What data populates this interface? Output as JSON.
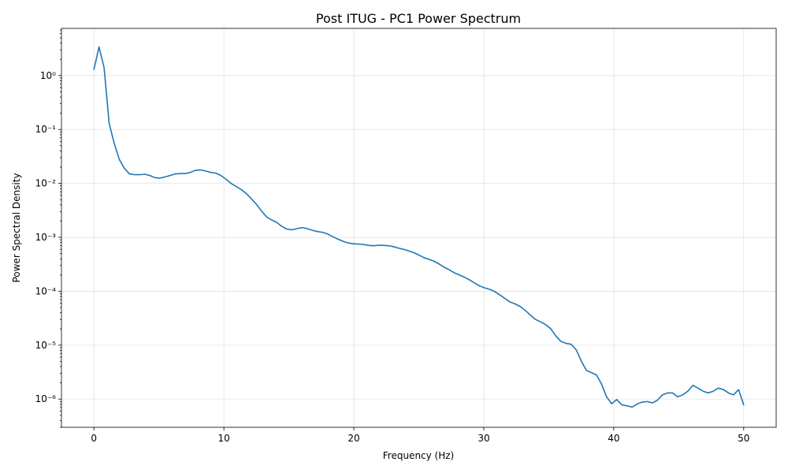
{
  "chart_data": {
    "type": "line",
    "title": "Post ITUG - PC1 Power Spectrum",
    "xlabel": "Frequency (Hz)",
    "ylabel": "Power Spectral Density",
    "xlim": [
      -2.5,
      52.5
    ],
    "ylim": [
      3e-07,
      7.5
    ],
    "yscale": "log",
    "grid": true,
    "xticks": [
      0,
      10,
      20,
      30,
      40,
      50
    ],
    "xtick_labels": [
      "0",
      "10",
      "20",
      "30",
      "40",
      "50"
    ],
    "yticks": [
      -6,
      -5,
      -4,
      -3,
      -2,
      -1,
      0
    ],
    "ytick_labels": [
      "10⁻⁶",
      "10⁻⁵",
      "10⁻⁴",
      "10⁻³",
      "10⁻²",
      "10⁻¹",
      "10⁰"
    ],
    "series": [
      {
        "color": "#1f77b4",
        "x": [
          0,
          0.39,
          0.78,
          1.17,
          1.56,
          1.95,
          2.34,
          2.73,
          3.13,
          3.52,
          3.91,
          4.3,
          4.69,
          5.08,
          5.47,
          5.86,
          6.25,
          6.64,
          7.03,
          7.42,
          7.81,
          8.2,
          8.59,
          8.98,
          9.38,
          9.77,
          10.16,
          10.55,
          10.94,
          11.33,
          11.72,
          12.11,
          12.5,
          12.89,
          13.28,
          13.67,
          14.06,
          14.45,
          14.84,
          15.23,
          15.63,
          16.02,
          16.41,
          16.8,
          17.19,
          17.58,
          17.97,
          18.36,
          18.75,
          19.14,
          19.53,
          19.92,
          20.31,
          20.7,
          21.09,
          21.48,
          21.88,
          22.27,
          22.66,
          23.05,
          23.44,
          23.83,
          24.22,
          24.61,
          25.0,
          25.39,
          25.78,
          26.17,
          26.56,
          26.95,
          27.34,
          27.73,
          28.13,
          28.52,
          28.91,
          29.3,
          29.69,
          30.08,
          30.47,
          30.86,
          31.25,
          31.64,
          32.03,
          32.42,
          32.81,
          33.2,
          33.59,
          33.98,
          34.38,
          34.77,
          35.16,
          35.55,
          35.94,
          36.33,
          36.72,
          37.11,
          37.5,
          37.89,
          38.28,
          38.67,
          39.06,
          39.45,
          39.84,
          40.23,
          40.63,
          41.02,
          41.41,
          41.8,
          42.19,
          42.58,
          42.97,
          43.36,
          43.75,
          44.14,
          44.53,
          44.92,
          45.31,
          45.7,
          46.09,
          46.48,
          46.88,
          47.27,
          47.66,
          48.05,
          48.44,
          48.83,
          49.22,
          49.61,
          50.0
        ],
        "y": [
          1.3,
          3.4,
          1.4,
          0.13,
          0.055,
          0.028,
          0.019,
          0.015,
          0.0145,
          0.0145,
          0.0148,
          0.014,
          0.0128,
          0.0125,
          0.0132,
          0.014,
          0.015,
          0.0152,
          0.0152,
          0.016,
          0.0175,
          0.0178,
          0.017,
          0.016,
          0.0155,
          0.014,
          0.012,
          0.01,
          0.0088,
          0.0077,
          0.0065,
          0.0052,
          0.0041,
          0.0031,
          0.0024,
          0.0021,
          0.0019,
          0.0016,
          0.00142,
          0.00138,
          0.00145,
          0.00152,
          0.00145,
          0.00135,
          0.00128,
          0.00124,
          0.00116,
          0.00103,
          0.00093,
          0.00085,
          0.00079,
          0.00076,
          0.00075,
          0.00074,
          0.00071,
          0.0007,
          0.00071,
          0.00071,
          0.0007,
          0.00067,
          0.00063,
          0.0006,
          0.00056,
          0.00052,
          0.00047,
          0.00042,
          0.00039,
          0.00036,
          0.00032,
          0.00028,
          0.00025,
          0.00022,
          0.0002,
          0.000182,
          0.000162,
          0.000142,
          0.000125,
          0.000115,
          0.000108,
          9.8e-05,
          8.5e-05,
          7.3e-05,
          6.3e-05,
          5.8e-05,
          5.2e-05,
          4.4e-05,
          3.6e-05,
          3e-05,
          2.7e-05,
          2.4e-05,
          2e-05,
          1.48e-05,
          1.17e-05,
          1.08e-05,
          1.04e-05,
          8.2e-06,
          5.1e-06,
          3.4e-06,
          3.1e-06,
          2.8e-06,
          1.9e-06,
          1.1e-06,
          8.2e-07,
          9.8e-07,
          7.8e-07,
          7.5e-07,
          7.1e-07,
          8.1e-07,
          8.8e-07,
          9e-07,
          8.5e-07,
          9.5e-07,
          1.2e-06,
          1.3e-06,
          1.3e-06,
          1.1e-06,
          1.2e-06,
          1.4e-06,
          1.8e-06,
          1.6e-06,
          1.4e-06,
          1.3e-06,
          1.4e-06,
          1.6e-06,
          1.5e-06,
          1.3e-06,
          1.2e-06,
          1.5e-06,
          7.8e-07
        ]
      }
    ]
  }
}
